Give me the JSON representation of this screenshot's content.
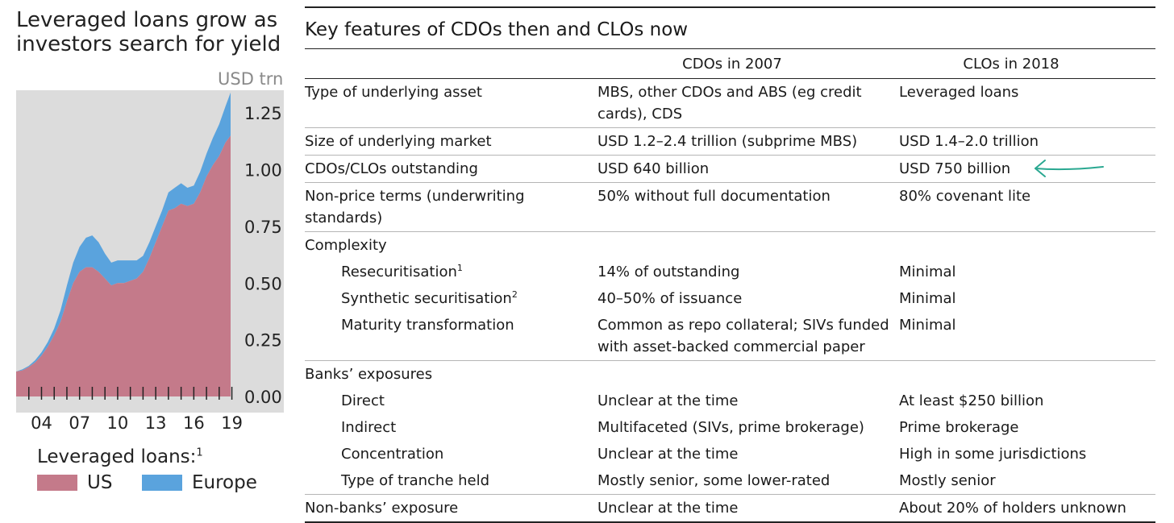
{
  "chart": {
    "title": "Leveraged loans grow as investors search for yield",
    "unit": "USD trn",
    "legend_title": "Leveraged loans:",
    "legend_footnote": "1",
    "colors": {
      "us": "#c47a8a",
      "europe": "#5aa3dd",
      "plot_bg": "#dcdcdc"
    }
  },
  "chart_data": {
    "type": "area",
    "stacked": true,
    "x": [
      2002.0,
      2002.5,
      2003.0,
      2003.5,
      2004.0,
      2004.5,
      2005.0,
      2005.5,
      2006.0,
      2006.5,
      2007.0,
      2007.5,
      2008.0,
      2008.5,
      2009.0,
      2009.5,
      2010.0,
      2010.5,
      2011.0,
      2011.5,
      2012.0,
      2012.5,
      2013.0,
      2013.5,
      2014.0,
      2014.5,
      2015.0,
      2015.5,
      2016.0,
      2016.5,
      2017.0,
      2017.5,
      2018.0,
      2018.5,
      2018.9
    ],
    "series": [
      {
        "name": "US",
        "values": [
          0.11,
          0.115,
          0.13,
          0.15,
          0.18,
          0.22,
          0.27,
          0.33,
          0.42,
          0.5,
          0.55,
          0.57,
          0.57,
          0.55,
          0.52,
          0.49,
          0.5,
          0.5,
          0.51,
          0.52,
          0.55,
          0.61,
          0.68,
          0.75,
          0.82,
          0.83,
          0.85,
          0.84,
          0.85,
          0.9,
          0.97,
          1.02,
          1.06,
          1.12,
          1.15
        ]
      },
      {
        "name": "Europe",
        "values": [
          0.0,
          0.005,
          0.005,
          0.01,
          0.015,
          0.02,
          0.03,
          0.05,
          0.07,
          0.09,
          0.11,
          0.13,
          0.14,
          0.13,
          0.11,
          0.1,
          0.1,
          0.1,
          0.09,
          0.08,
          0.07,
          0.07,
          0.07,
          0.07,
          0.08,
          0.09,
          0.09,
          0.08,
          0.08,
          0.09,
          0.1,
          0.12,
          0.14,
          0.16,
          0.19
        ]
      }
    ],
    "xticks": [
      2004,
      2007,
      2010,
      2013,
      2016,
      2019
    ],
    "xtick_labels": [
      "04",
      "07",
      "10",
      "13",
      "16",
      "19"
    ],
    "xlim": [
      2002.0,
      2020.3
    ],
    "ylim": [
      0,
      1.35
    ],
    "yticks": [
      0.0,
      0.25,
      0.5,
      0.75,
      1.0,
      1.25
    ],
    "ytick_labels": [
      "0.00",
      "0.25",
      "0.50",
      "0.75",
      "1.00",
      "1.25"
    ],
    "grid": false,
    "legend": "bottom"
  },
  "table": {
    "title": "Key features of CDOs then and CLOs now",
    "headers": {
      "feature": "",
      "cdo": "CDOs in 2007",
      "clo": "CLOs in 2018"
    },
    "rows": [
      {
        "feature": "Type of underlying asset",
        "sup": "",
        "cdo": "MBS, other CDOs and ABS (eg credit cards), CDS",
        "clo": "Leveraged loans"
      },
      {
        "feature": "Size of underlying market",
        "sup": "",
        "cdo": "USD 1.2–2.4 trillion (subprime MBS)",
        "clo": "USD 1.4–2.0 trillion"
      },
      {
        "feature": "CDOs/CLOs outstanding",
        "sup": "",
        "cdo": "USD 640 billion",
        "clo": "USD 750 billion"
      },
      {
        "feature": "Non-price terms (underwriting standards)",
        "sup": "",
        "cdo": "50% without full documentation",
        "clo": "80% covenant lite"
      },
      {
        "feature": "Complexity",
        "sup": "",
        "cdo": "",
        "clo": ""
      },
      {
        "feature": "Resecuritisation",
        "sup": "1",
        "cdo": "14% of outstanding",
        "clo": "Minimal"
      },
      {
        "feature": "Synthetic securitisation",
        "sup": "2",
        "cdo": "40–50% of issuance",
        "clo": "Minimal"
      },
      {
        "feature": "Maturity transformation",
        "sup": "",
        "cdo": "Common as repo collateral; SIVs funded with asset-backed commercial paper",
        "clo": "Minimal"
      },
      {
        "feature": "Banks’ exposures",
        "sup": "",
        "cdo": "",
        "clo": ""
      },
      {
        "feature": "Direct",
        "sup": "",
        "cdo": "Unclear at the time",
        "clo": "At least $250 billion"
      },
      {
        "feature": "Indirect",
        "sup": "",
        "cdo": "Multifaceted (SIVs, prime brokerage)",
        "clo": "Prime brokerage"
      },
      {
        "feature": "Concentration",
        "sup": "",
        "cdo": "Unclear at the time",
        "clo": "High in some jurisdictions"
      },
      {
        "feature": "Type of tranche held",
        "sup": "",
        "cdo": "Mostly senior, some lower-rated",
        "clo": "Mostly senior"
      },
      {
        "feature": "Non-banks’ exposure",
        "sup": "",
        "cdo": "Unclear at the time",
        "clo": "About 20% of holders unknown"
      }
    ]
  },
  "annotation": {
    "arrow_color": "#2aa891",
    "arrow_target": "USD 750 billion"
  }
}
